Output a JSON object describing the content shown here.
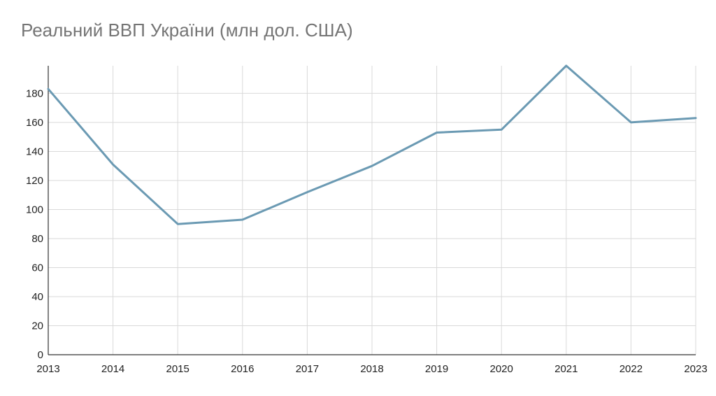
{
  "chart_data": {
    "type": "line",
    "title": "Реальний ВВП України (млн дол. США)",
    "xlabel": "",
    "ylabel": "",
    "x": [
      "2013",
      "2014",
      "2015",
      "2016",
      "2017",
      "2018",
      "2019",
      "2020",
      "2021",
      "2022",
      "2023"
    ],
    "series": [
      {
        "values": [
          183,
          131,
          90,
          93,
          112,
          130,
          153,
          155,
          199,
          160,
          163
        ]
      }
    ],
    "ylim": [
      0,
      199
    ],
    "yticks": [
      "0",
      "20",
      "40",
      "60",
      "80",
      "100",
      "120",
      "140",
      "160",
      "180"
    ],
    "grid": true,
    "line_color": "#6b9ab3",
    "grid_color": "#d9d9d9",
    "axis_color": "#333333"
  }
}
